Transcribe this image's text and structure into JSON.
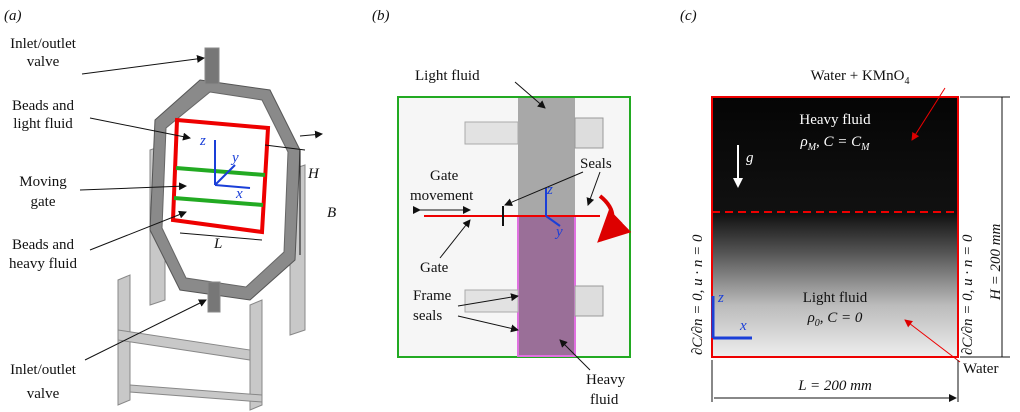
{
  "panel_a": {
    "label": "(a)",
    "top_valve": [
      "Inlet/outlet",
      "valve"
    ],
    "beads_light": [
      "Beads and",
      "light fluid"
    ],
    "gate": [
      "Moving",
      "gate"
    ],
    "beads_heavy": [
      "Beads and",
      "heavy fluid"
    ],
    "bottom_valve": [
      "Inlet/outlet",
      "valve"
    ],
    "axes": [
      "z",
      "y",
      "x"
    ],
    "dims": [
      "B",
      "H",
      "L"
    ]
  },
  "panel_b": {
    "label": "(b)",
    "light": "Light fluid",
    "gate_movement": [
      "Gate",
      "movement"
    ],
    "seals": "Seals",
    "gate": "Gate",
    "frame_seals": [
      "Frame",
      "seals"
    ],
    "heavy": [
      "Heavy",
      "fluid"
    ],
    "axes": [
      "z",
      "y"
    ]
  },
  "panel_c": {
    "label": "(c)",
    "top_note": [
      "Water + KMnO",
      "4"
    ],
    "heavy": "Heavy fluid",
    "heavy_params": [
      "ρ",
      "M",
      ", C = C",
      "M"
    ],
    "gravity": "g",
    "left_bc": "∂C/∂n = 0,  u · n = 0",
    "right_bc": "∂C/∂n = 0,  u · n = 0",
    "height": "H = 200 mm",
    "light": "Light fluid",
    "light_params": [
      "ρ",
      "0",
      ", C = 0"
    ],
    "axes": [
      "z",
      "x"
    ],
    "bottom_note": "Water",
    "width": "L = 200 mm"
  }
}
